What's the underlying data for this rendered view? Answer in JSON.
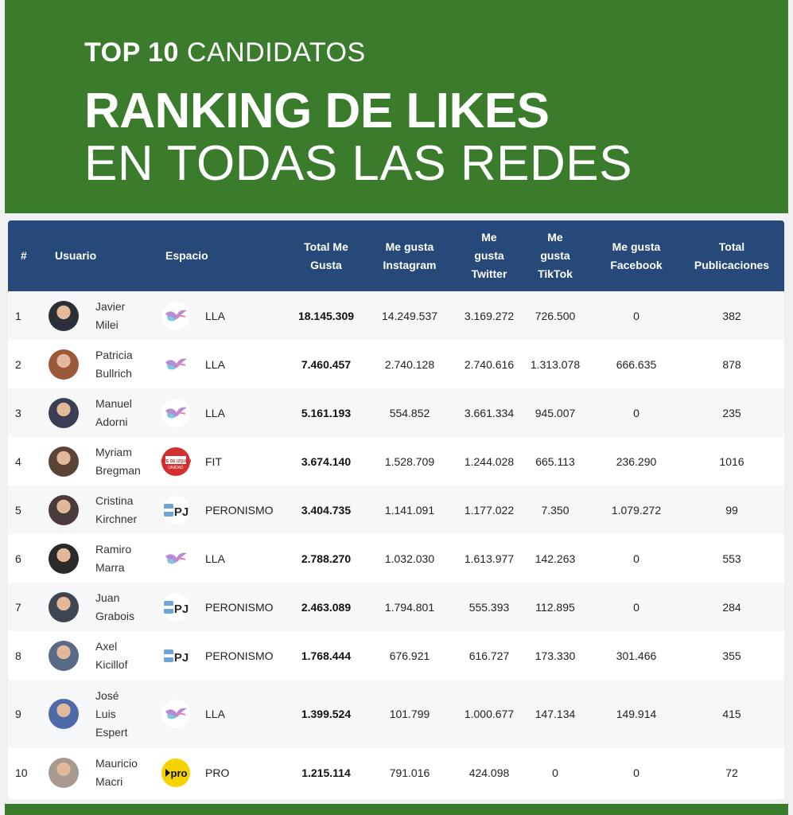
{
  "header": {
    "kicker_bold": "TOP 10",
    "kicker_rest": "CANDIDATOS",
    "title_line1": "RANKING DE LIKES",
    "title_line2": "EN TODAS LAS REDES"
  },
  "table": {
    "columns": {
      "rank": "#",
      "user": "Usuario",
      "space": "Espacio",
      "total_a": "Total Me",
      "total_b": "Gusta",
      "ig_a": "Me gusta",
      "ig_b": "Instagram",
      "tw_a": "Me",
      "tw_b": "gusta",
      "tw_c": "Twitter",
      "tt_a": "Me",
      "tt_b": "gusta",
      "tt_c": "TikTok",
      "fb_a": "Me gusta",
      "fb_b": "Facebook",
      "pub_a": "Total",
      "pub_b": "Publicaciones"
    },
    "rows": [
      {
        "rank": "1",
        "name1": "Javier",
        "name2": "Milei",
        "name3": "",
        "party": "LLA",
        "logo": "lla",
        "total": "18.145.309",
        "ig": "14.249.537",
        "tw": "3.169.272",
        "tt": "726.500",
        "fb": "0",
        "pubs": "382"
      },
      {
        "rank": "2",
        "name1": "Patricia",
        "name2": "Bullrich",
        "name3": "",
        "party": "LLA",
        "logo": "lla",
        "total": "7.460.457",
        "ig": "2.740.128",
        "tw": "2.740.616",
        "tt": "1.313.078",
        "fb": "666.635",
        "pubs": "878"
      },
      {
        "rank": "3",
        "name1": "Manuel",
        "name2": "Adorni",
        "name3": "",
        "party": "LLA",
        "logo": "lla",
        "total": "5.161.193",
        "ig": "554.852",
        "tw": "3.661.334",
        "tt": "945.007",
        "fb": "0",
        "pubs": "235"
      },
      {
        "rank": "4",
        "name1": "Myriam",
        "name2": "Bregman",
        "name3": "",
        "party": "FIT",
        "logo": "fit",
        "total": "3.674.140",
        "ig": "1.528.709",
        "tw": "1.244.028",
        "tt": "665.113",
        "fb": "236.290",
        "pubs": "1016"
      },
      {
        "rank": "5",
        "name1": "Cristina",
        "name2": "Kirchner",
        "name3": "",
        "party": "PERONISMO",
        "logo": "pj",
        "total": "3.404.735",
        "ig": "1.141.091",
        "tw": "1.177.022",
        "tt": "7.350",
        "fb": "1.079.272",
        "pubs": "99"
      },
      {
        "rank": "6",
        "name1": "Ramiro",
        "name2": "Marra",
        "name3": "",
        "party": "LLA",
        "logo": "lla",
        "total": "2.788.270",
        "ig": "1.032.030",
        "tw": "1.613.977",
        "tt": "142.263",
        "fb": "0",
        "pubs": "553"
      },
      {
        "rank": "7",
        "name1": "Juan",
        "name2": "Grabois",
        "name3": "",
        "party": "PERONISMO",
        "logo": "pj",
        "total": "2.463.089",
        "ig": "1.794.801",
        "tw": "555.393",
        "tt": "112.895",
        "fb": "0",
        "pubs": "284"
      },
      {
        "rank": "8",
        "name1": "Axel",
        "name2": "Kicillof",
        "name3": "",
        "party": "PERONISMO",
        "logo": "pj",
        "total": "1.768.444",
        "ig": "676.921",
        "tw": "616.727",
        "tt": "173.330",
        "fb": "301.466",
        "pubs": "355"
      },
      {
        "rank": "9",
        "name1": "José",
        "name2": "Luis",
        "name3": "Espert",
        "party": "LLA",
        "logo": "lla",
        "total": "1.399.524",
        "ig": "101.799",
        "tw": "1.000.677",
        "tt": "147.134",
        "fb": "149.914",
        "pubs": "415"
      },
      {
        "rank": "10",
        "name1": "Mauricio",
        "name2": "Macri",
        "name3": "",
        "party": "PRO",
        "logo": "pro",
        "total": "1.215.114",
        "ig": "791.016",
        "tw": "424.098",
        "tt": "0",
        "fb": "0",
        "pubs": "72"
      }
    ]
  },
  "logos": {
    "fit_text_a": "FRENTE DE IZQUIERDA",
    "fit_text_b": "UNIDAD",
    "pj_text": "PJ",
    "pro_text": "pro"
  },
  "colors": {
    "header_green": "#3b7b2c",
    "table_header_blue": "#26497a",
    "fit_red": "#d32f2f",
    "pro_yellow": "#f5d300"
  }
}
